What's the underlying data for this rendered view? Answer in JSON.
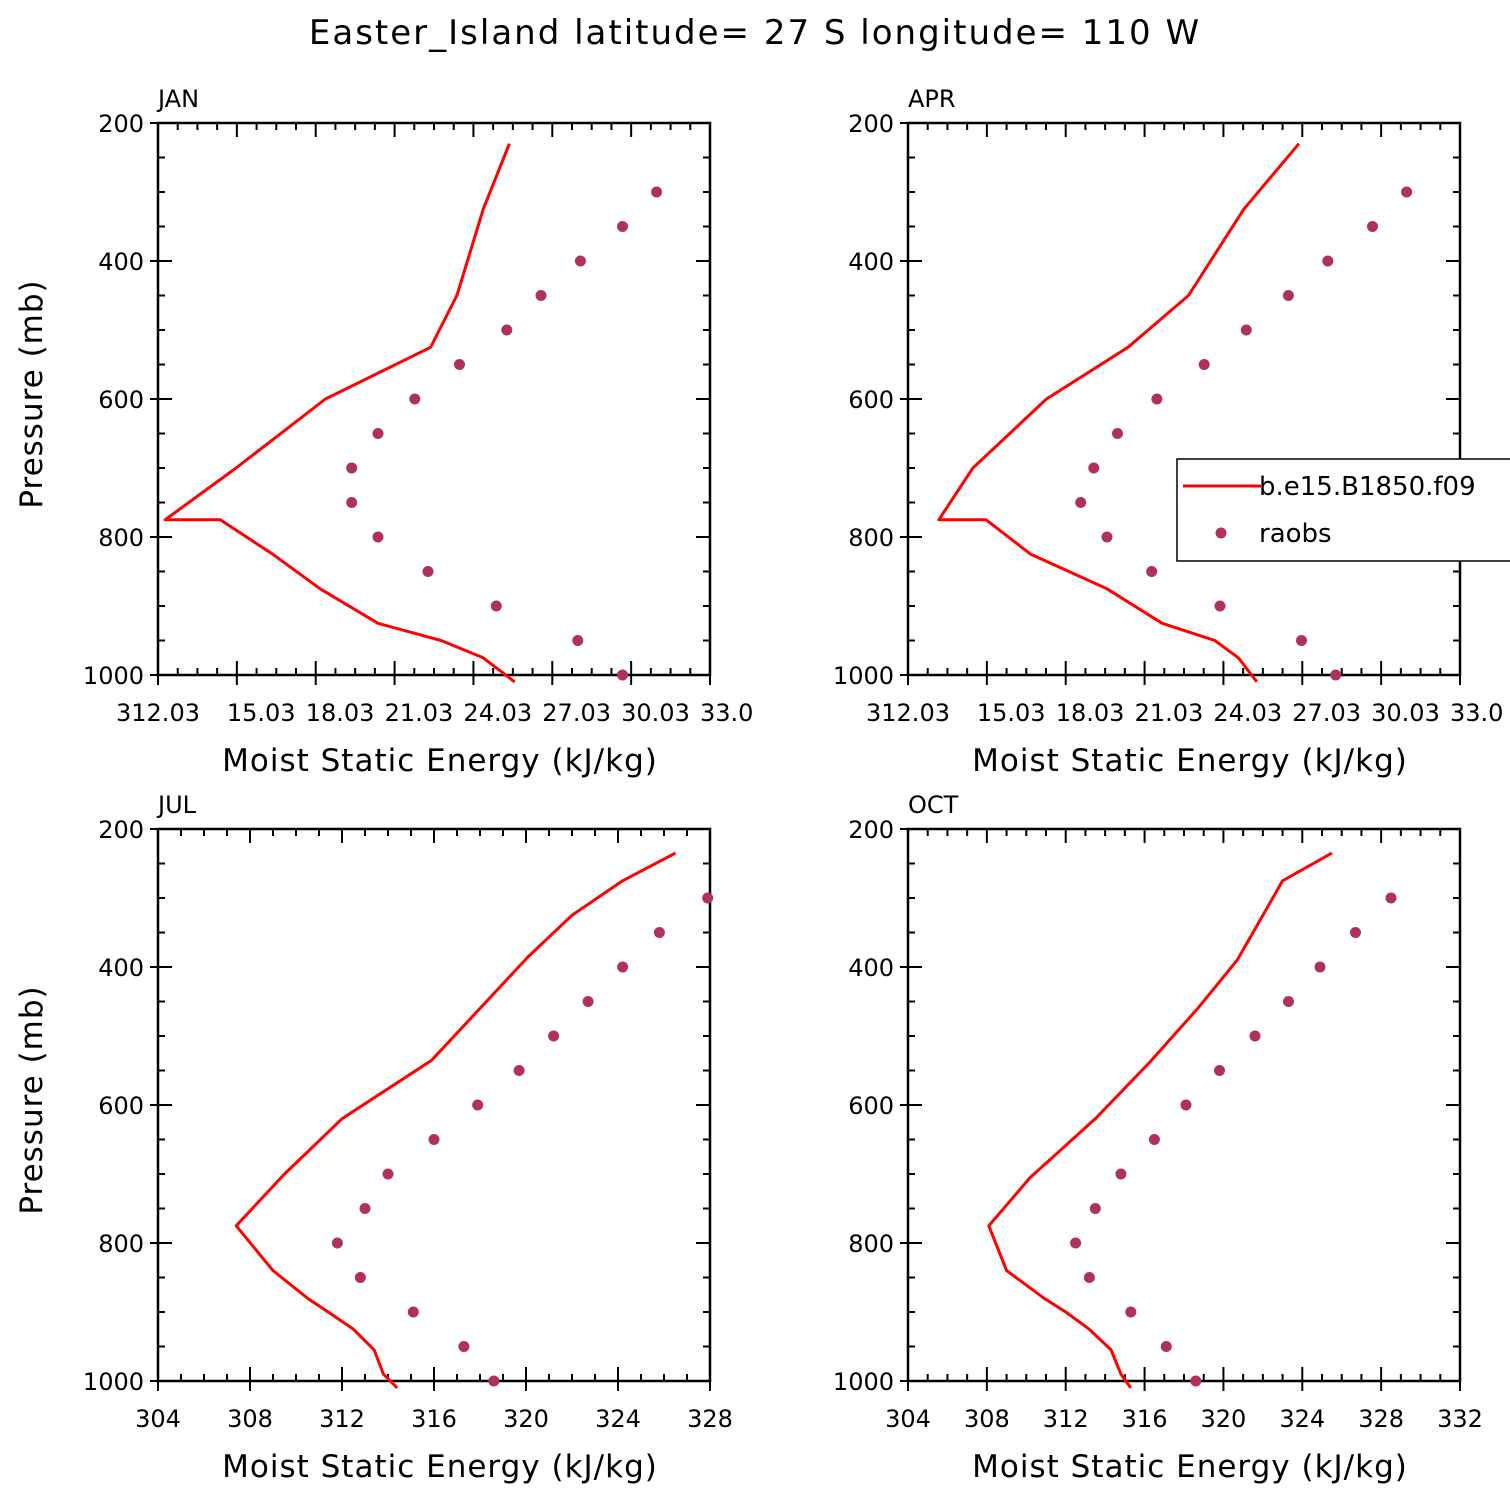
{
  "figure_title": "Easter_Island  latitude= 27 S longitude= 110 W",
  "legend": {
    "model_label": "b.e15.B1850.f09",
    "obs_label": "raobs"
  },
  "colors": {
    "model_line": "#ff0000",
    "obs_marker": "#b03060",
    "axes": "#000000"
  },
  "chart_data": [
    {
      "type": "line",
      "panel": "JAN",
      "title": "JAN",
      "xlabel": "Moist Static Energy (kJ/kg)",
      "ylabel": "Pressure (mb)",
      "xlim": [
        312.03,
        333.03
      ],
      "ylim": [
        1000,
        200
      ],
      "x_ticks": [
        "312.03",
        "15.03",
        "18.03",
        "21.03",
        "24.03",
        "27.03",
        "30.03",
        "33.0"
      ],
      "x_tick_values": [
        312.03,
        315.03,
        318.03,
        321.03,
        324.03,
        327.03,
        330.03,
        333.03
      ],
      "y_ticks": [
        200,
        400,
        600,
        800,
        1000
      ],
      "series": [
        {
          "name": "b.e15.B1850.f09",
          "kind": "line",
          "x": [
            325.6,
            324.4,
            322.8,
            320.4,
            318.2,
            316.4,
            314.4,
            312.3,
            315.0,
            318.4,
            322.4,
            323.4,
            324.4,
            325.4
          ],
          "y": [
            1010,
            975,
            950,
            925,
            875,
            825,
            775,
            775,
            700,
            600,
            525,
            450,
            325,
            230
          ]
        },
        {
          "name": "raobs",
          "kind": "scatter",
          "x": [
            329.7,
            328.0,
            324.9,
            322.3,
            320.4,
            319.4,
            319.4,
            320.4,
            321.8,
            323.5,
            325.3,
            326.6,
            328.1,
            329.7,
            331.0
          ],
          "y": [
            1000,
            950,
            900,
            850,
            800,
            750,
            700,
            650,
            600,
            550,
            500,
            450,
            400,
            350,
            300
          ]
        }
      ],
      "legend_visible": false
    },
    {
      "type": "line",
      "panel": "APR",
      "title": "APR",
      "xlabel": "Moist Static Energy (kJ/kg)",
      "ylabel": "",
      "xlim": [
        312.03,
        333.03
      ],
      "ylim": [
        1000,
        200
      ],
      "x_ticks": [
        "312.03",
        "15.03",
        "18.03",
        "21.03",
        "24.03",
        "27.03",
        "30.03",
        "33.0"
      ],
      "x_tick_values": [
        312.03,
        315.03,
        318.03,
        321.03,
        324.03,
        327.03,
        330.03,
        333.03
      ],
      "y_ticks": [
        200,
        400,
        600,
        800,
        1000
      ],
      "series": [
        {
          "name": "b.e15.B1850.f09",
          "kind": "line",
          "x": [
            325.3,
            324.6,
            323.7,
            321.7,
            319.6,
            316.7,
            315.0,
            313.2,
            314.5,
            317.3,
            320.4,
            322.7,
            324.8,
            326.9
          ],
          "y": [
            1010,
            975,
            950,
            925,
            875,
            825,
            775,
            775,
            700,
            600,
            525,
            450,
            325,
            230
          ]
        },
        {
          "name": "raobs",
          "kind": "scatter",
          "x": [
            328.3,
            327.0,
            323.9,
            321.3,
            319.6,
            318.6,
            319.1,
            320.0,
            321.5,
            323.3,
            324.9,
            326.5,
            328.0,
            329.7,
            331.0
          ],
          "y": [
            1000,
            950,
            900,
            850,
            800,
            750,
            700,
            650,
            600,
            550,
            500,
            450,
            400,
            350,
            300
          ]
        }
      ],
      "legend_visible": true
    },
    {
      "type": "line",
      "panel": "JUL",
      "title": "JUL",
      "xlabel": "Moist Static Energy (kJ/kg)",
      "ylabel": "Pressure (mb)",
      "xlim": [
        304,
        328
      ],
      "ylim": [
        1000,
        200
      ],
      "x_ticks": [
        "304",
        "308",
        "312",
        "316",
        "320",
        "324",
        "328"
      ],
      "x_tick_values": [
        304,
        308,
        312,
        316,
        320,
        324,
        328
      ],
      "y_ticks": [
        200,
        400,
        600,
        800,
        1000
      ],
      "series": [
        {
          "name": "b.e15.B1850.f09",
          "kind": "line",
          "x": [
            314.4,
            313.8,
            313.4,
            312.5,
            311.4,
            310.5,
            309.0,
            307.4,
            309.5,
            312.0,
            315.9,
            320.1,
            322.0,
            324.2,
            326.5
          ],
          "y": [
            1010,
            990,
            955,
            925,
            900,
            880,
            840,
            775,
            700,
            620,
            535,
            385,
            325,
            275,
            235
          ]
        },
        {
          "name": "raobs",
          "kind": "scatter",
          "x": [
            318.6,
            317.3,
            315.1,
            312.8,
            311.8,
            313.0,
            314.0,
            316.0,
            317.9,
            319.7,
            321.2,
            322.7,
            324.2,
            325.8,
            327.9
          ],
          "y": [
            1000,
            950,
            900,
            850,
            800,
            750,
            700,
            650,
            600,
            550,
            500,
            450,
            400,
            350,
            300
          ]
        }
      ],
      "legend_visible": false
    },
    {
      "type": "line",
      "panel": "OCT",
      "title": "OCT",
      "xlabel": "Moist Static Energy (kJ/kg)",
      "ylabel": "",
      "xlim": [
        304,
        332
      ],
      "ylim": [
        1000,
        200
      ],
      "x_ticks": [
        "304",
        "308",
        "312",
        "316",
        "320",
        "324",
        "328",
        "332"
      ],
      "x_tick_values": [
        304,
        308,
        312,
        316,
        320,
        324,
        328,
        332
      ],
      "y_ticks": [
        200,
        400,
        600,
        800,
        1000
      ],
      "series": [
        {
          "name": "b.e15.B1850.f09",
          "kind": "line",
          "x": [
            315.3,
            314.8,
            314.3,
            313.2,
            312.0,
            310.9,
            309.0,
            308.1,
            310.2,
            313.5,
            316.2,
            318.7,
            320.7,
            322.0,
            323.0,
            325.5
          ],
          "y": [
            1010,
            990,
            955,
            925,
            900,
            880,
            840,
            775,
            705,
            620,
            540,
            460,
            390,
            325,
            275,
            235
          ]
        },
        {
          "name": "raobs",
          "kind": "scatter",
          "x": [
            318.6,
            317.1,
            315.3,
            313.2,
            312.5,
            313.5,
            314.8,
            316.5,
            318.1,
            319.8,
            321.6,
            323.3,
            324.9,
            326.7,
            328.5
          ],
          "y": [
            1000,
            950,
            900,
            850,
            800,
            750,
            700,
            650,
            600,
            550,
            500,
            450,
            400,
            350,
            300
          ]
        }
      ],
      "legend_visible": false
    }
  ]
}
